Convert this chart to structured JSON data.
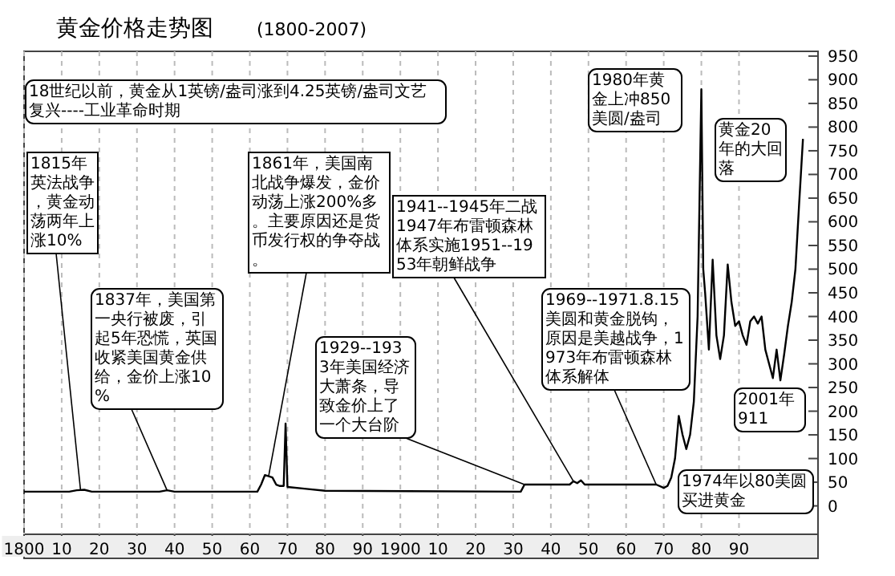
{
  "chart_data": {
    "type": "line",
    "title": "黄金价格走势图",
    "subtitle": "(1800-2007)",
    "x": [
      1800,
      1812,
      1814,
      1816,
      1818,
      1836,
      1838,
      1840,
      1862,
      1863,
      1864,
      1866,
      1867,
      1868,
      1869,
      1869.5,
      1870,
      1875,
      1880,
      1932,
      1933,
      1945,
      1946,
      1947,
      1948,
      1949,
      1968,
      1970,
      1971,
      1972,
      1973,
      1974,
      1975,
      1976,
      1977,
      1978,
      1979,
      1980,
      1980.5,
      1981,
      1982,
      1983,
      1984,
      1985,
      1986,
      1987,
      1988,
      1989,
      1990,
      1991,
      1992,
      1993,
      1994,
      1995,
      1996,
      1997,
      1998,
      1999,
      2000,
      2001,
      2002,
      2003,
      2004,
      2005,
      2006,
      2007
    ],
    "values": [
      30,
      30,
      33,
      34,
      30,
      30,
      33,
      30,
      30,
      45,
      65,
      60,
      45,
      42,
      42,
      174,
      40,
      36,
      32,
      30,
      45,
      45,
      52,
      48,
      54,
      45,
      45,
      38,
      42,
      60,
      100,
      190,
      150,
      120,
      150,
      220,
      400,
      880,
      500,
      450,
      330,
      520,
      360,
      310,
      360,
      510,
      430,
      380,
      390,
      360,
      340,
      390,
      400,
      385,
      400,
      330,
      300,
      270,
      330,
      265,
      320,
      380,
      430,
      500,
      640,
      775
    ],
    "color": "#000000",
    "xlim": [
      1800,
      2011
    ],
    "xticks": [
      {
        "value": 1800,
        "label": "1800"
      },
      {
        "value": 1810,
        "label": "10"
      },
      {
        "value": 1820,
        "label": "20"
      },
      {
        "value": 1830,
        "label": "30"
      },
      {
        "value": 1840,
        "label": "40"
      },
      {
        "value": 1850,
        "label": "50"
      },
      {
        "value": 1860,
        "label": "60"
      },
      {
        "value": 1870,
        "label": "70"
      },
      {
        "value": 1880,
        "label": "80"
      },
      {
        "value": 1890,
        "label": "90"
      },
      {
        "value": 1900,
        "label": "1900"
      },
      {
        "value": 1910,
        "label": "10"
      },
      {
        "value": 1920,
        "label": "20"
      },
      {
        "value": 1930,
        "label": "30"
      },
      {
        "value": 1940,
        "label": "40"
      },
      {
        "value": 1950,
        "label": "50"
      },
      {
        "value": 1960,
        "label": "60"
      },
      {
        "value": 1970,
        "label": "70"
      },
      {
        "value": 1980,
        "label": "80"
      },
      {
        "value": 1990,
        "label": "90"
      }
    ],
    "ylim": [
      -60,
      960
    ],
    "yticks": [
      0,
      50,
      100,
      150,
      200,
      250,
      300,
      350,
      400,
      450,
      500,
      550,
      600,
      650,
      700,
      750,
      800,
      850,
      900,
      950
    ],
    "grid": "x",
    "annotations": [
      "18世纪以前，黄金从1英镑/盎司涨到4.25英镑/盎司文艺复兴----工业革命时期",
      {
        "text": "1815年英法战争，黄金动荡两年上涨10%",
        "x": 1815,
        "y": 34
      },
      {
        "text": "1837年，美国第一央行被废，引起5年恐慌，英国收紧美国黄金供给，金价上涨10%",
        "x": 1838,
        "y": 33
      },
      {
        "text": "1861年，美国南北战争爆发，金价动荡上涨200%多。主要原因还是货币发行权的争夺战。",
        "x": 1865,
        "y": 63
      },
      {
        "text": "1941--1945年二战1947年布雷顿森林体系实施1951--1953年朝鲜战争",
        "x": 1946,
        "y": 52
      },
      {
        "text": "1929--1933年美国经济大萧条，导致金价上了一个大台阶",
        "x": 1933,
        "y": 45
      },
      {
        "text": "1969--1971.8.15美圆和黄金脱钩，原因是美越战争，1973年布雷顿森林体系解体",
        "x": 1968,
        "y": 45
      },
      "1980年黄金上冲850美圆/盎司",
      "黄金20年的大回落",
      "2001年911",
      "1974年以80美圆买进黄金"
    ]
  }
}
